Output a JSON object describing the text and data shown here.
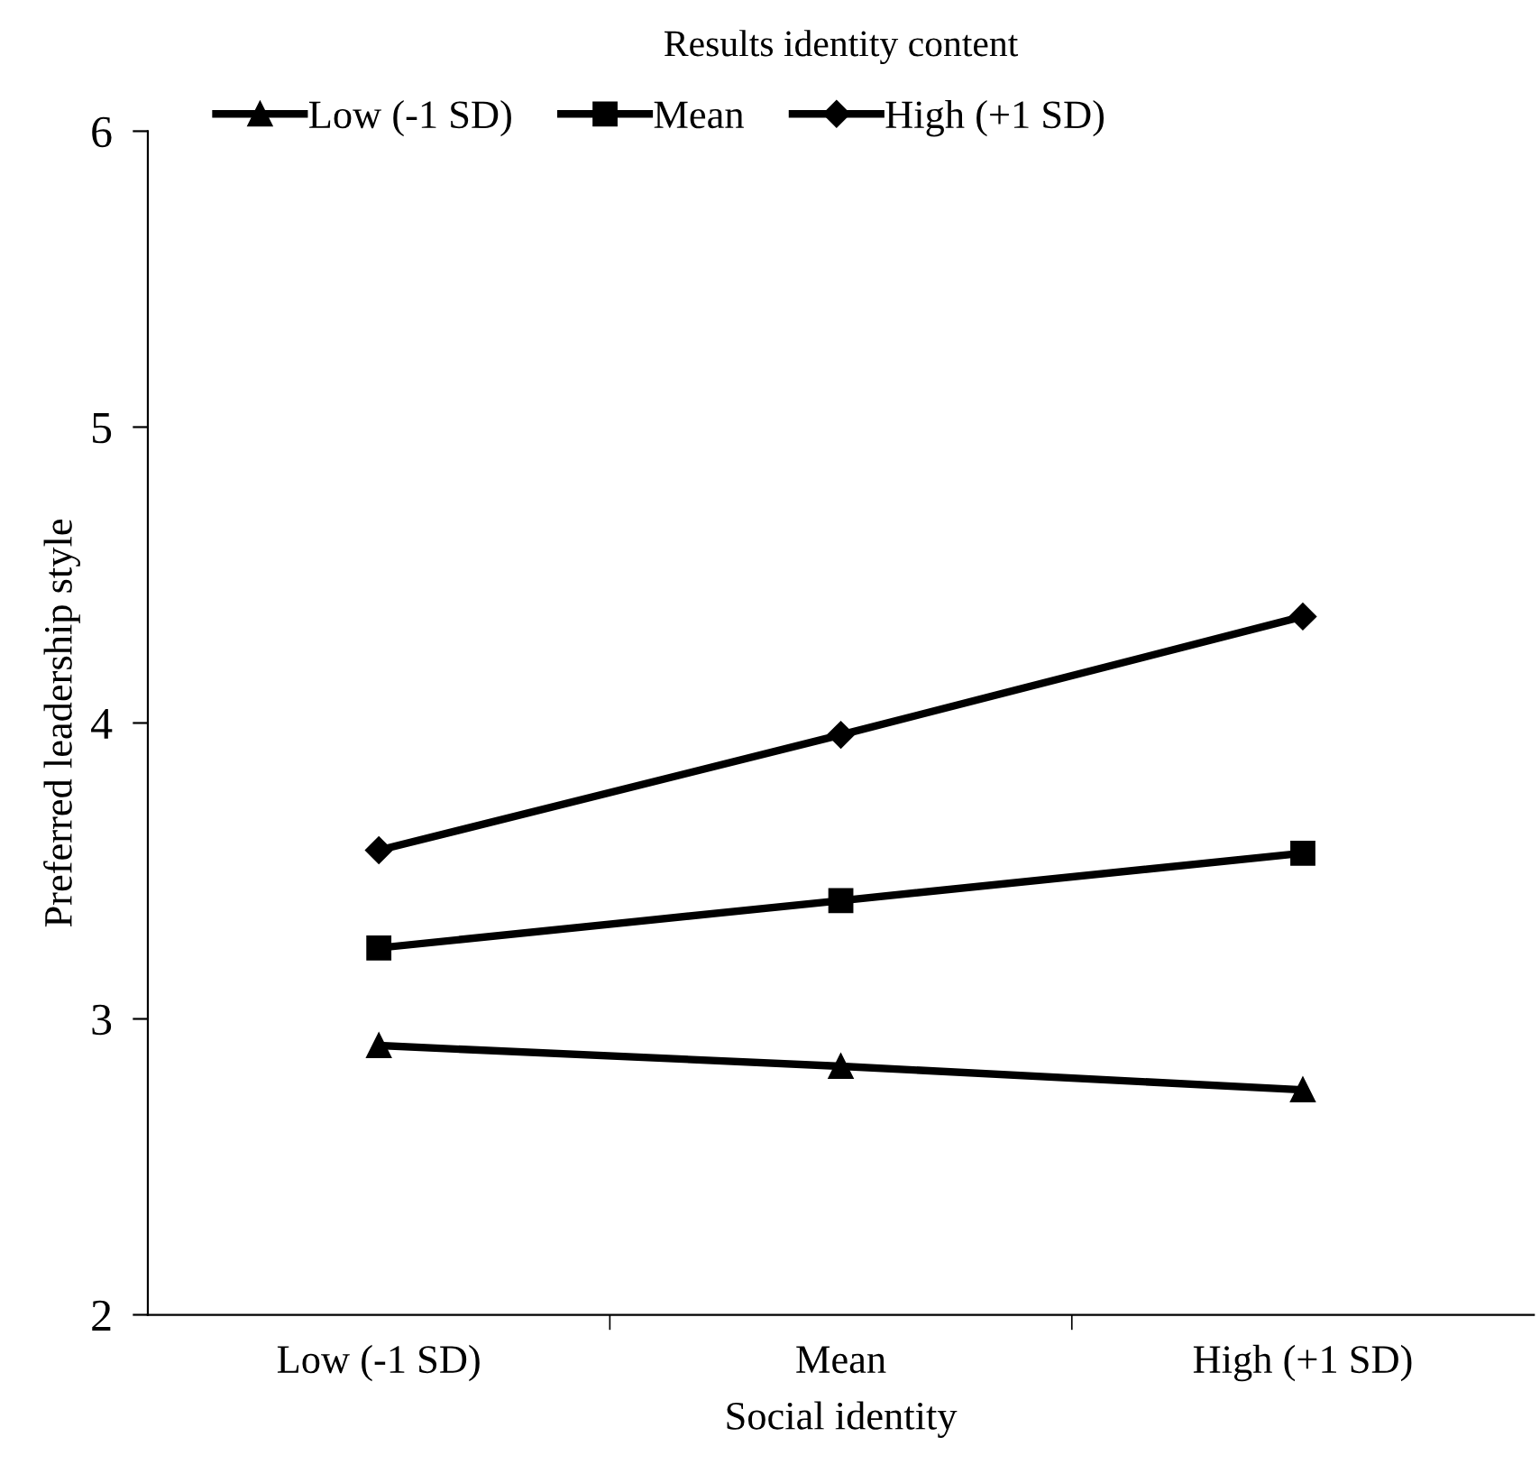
{
  "chart_data": {
    "type": "line",
    "title": "Results identity content",
    "xlabel": "Social identity",
    "ylabel": "Preferred leadership style",
    "categories": [
      "Low (-1 SD)",
      "Mean",
      "High (+1 SD)"
    ],
    "series": [
      {
        "name": "Low (-1 SD)",
        "color": "#000000",
        "marker": "triangle",
        "values": [
          2.91,
          2.84,
          2.76
        ]
      },
      {
        "name": "Mean",
        "color": "#000000",
        "marker": "square",
        "values": [
          3.24,
          3.4,
          3.56
        ]
      },
      {
        "name": "High (+1 SD)",
        "color": "#000000",
        "marker": "diamond",
        "values": [
          3.57,
          3.96,
          4.36
        ]
      }
    ],
    "ylim": [
      2,
      6
    ],
    "yticks": [
      2,
      3,
      4,
      5,
      6
    ],
    "grid": false,
    "legend": "top",
    "line_style": "solid"
  }
}
